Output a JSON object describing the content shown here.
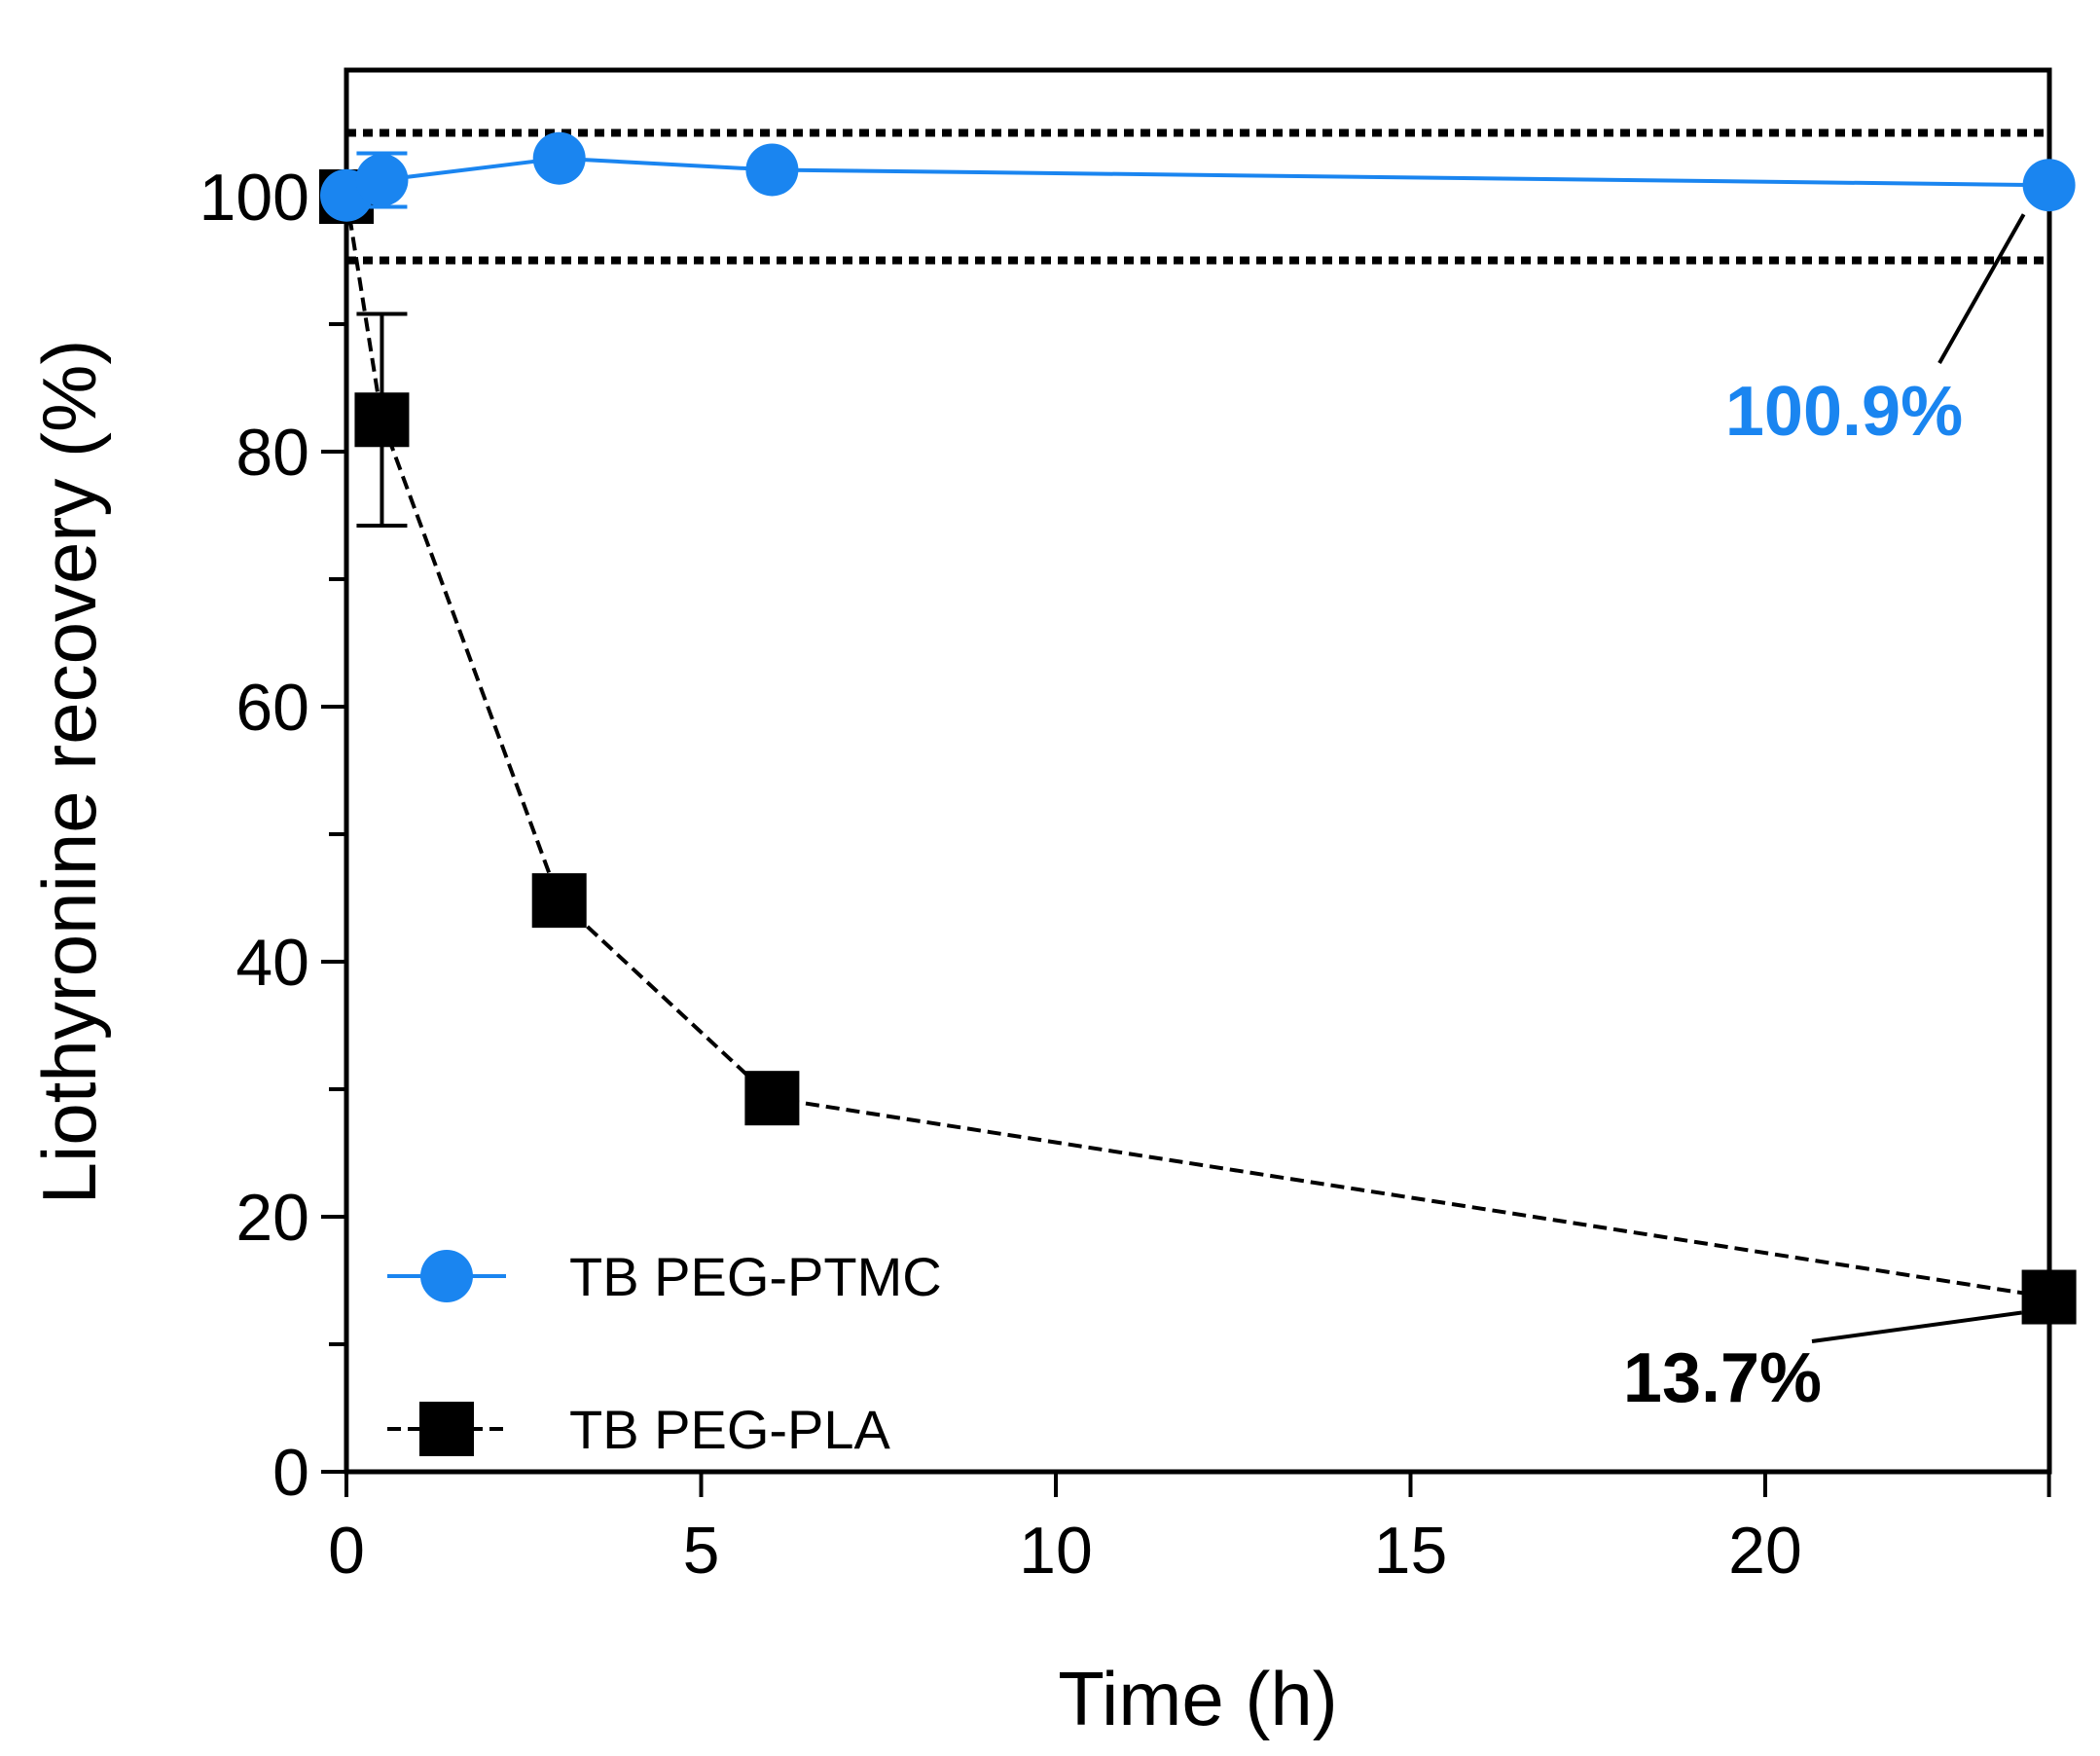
{
  "chart_data": {
    "type": "line",
    "title": "",
    "xlabel": "Time (h)",
    "ylabel": "Liothyronine recovery (%)",
    "xlim": [
      0,
      24
    ],
    "ylim": [
      0,
      110
    ],
    "x_ticks": [
      0,
      5,
      10,
      15,
      20
    ],
    "x_tick_labels": [
      "0",
      "5",
      "10",
      "15",
      "20"
    ],
    "y_ticks": [
      0,
      20,
      40,
      60,
      80,
      100
    ],
    "y_tick_labels": [
      "0",
      "20",
      "40",
      "60",
      "80",
      "100"
    ],
    "y_minor_ticks": [
      10,
      30,
      50,
      70,
      90
    ],
    "grid": false,
    "reference_lines": [
      {
        "y": 105,
        "style": "dotted",
        "color": "#000000"
      },
      {
        "y": 95,
        "style": "dotted",
        "color": "#000000"
      }
    ],
    "series": [
      {
        "name": "TB PEG-PTMC",
        "color": "#1a85f0",
        "marker": "circle",
        "line_style": "solid",
        "x": [
          0,
          0.5,
          3,
          6,
          24
        ],
        "values": [
          100.1,
          101.3,
          103.0,
          102.1,
          100.9
        ],
        "errors": [
          0.5,
          2.1,
          0.3,
          0.3,
          0.3
        ]
      },
      {
        "name": "TB PEG-PLA",
        "color": "#000000",
        "marker": "square",
        "line_style": "dashed",
        "x": [
          0,
          0.5,
          3,
          6,
          24
        ],
        "values": [
          100.0,
          82.5,
          44.8,
          29.3,
          13.7
        ],
        "errors": [
          0.3,
          8.3,
          0.3,
          0.3,
          0.3
        ]
      }
    ],
    "legend": {
      "position": "bottom-left",
      "entries": [
        "TB PEG-PTMC",
        "TB PEG-PLA"
      ]
    },
    "annotations": [
      {
        "text": "100.9%",
        "series": "TB PEG-PTMC",
        "x": 24,
        "y": 100.9,
        "color": "#1a85f0"
      },
      {
        "text": "13.7%",
        "series": "TB PEG-PLA",
        "x": 24,
        "y": 13.7,
        "color": "#000000"
      }
    ]
  }
}
